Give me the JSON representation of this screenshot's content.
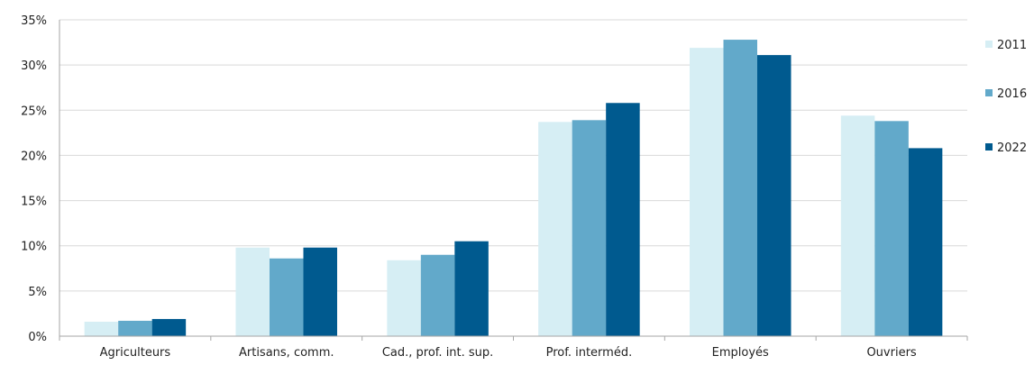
{
  "chart_data": {
    "type": "bar",
    "categories": [
      "Agriculteurs",
      "Artisans, comm.",
      "Cad., prof. int. sup.",
      "Prof. interméd.",
      "Employés",
      "Ouvriers"
    ],
    "series": [
      {
        "name": "2011",
        "color": "#d6eef4",
        "values": [
          1.6,
          9.8,
          8.4,
          23.7,
          31.9,
          24.4
        ]
      },
      {
        "name": "2016",
        "color": "#62a9ca",
        "values": [
          1.7,
          8.6,
          9.0,
          23.9,
          32.8,
          23.8
        ]
      },
      {
        "name": "2022",
        "color": "#005a8f",
        "values": [
          1.9,
          9.8,
          10.5,
          25.8,
          31.1,
          20.8
        ]
      }
    ],
    "ylim": [
      0,
      35
    ],
    "yticks": [
      "0%",
      "5%",
      "10%",
      "15%",
      "20%",
      "25%",
      "30%",
      "35%"
    ],
    "grid": true,
    "legend": "right"
  }
}
